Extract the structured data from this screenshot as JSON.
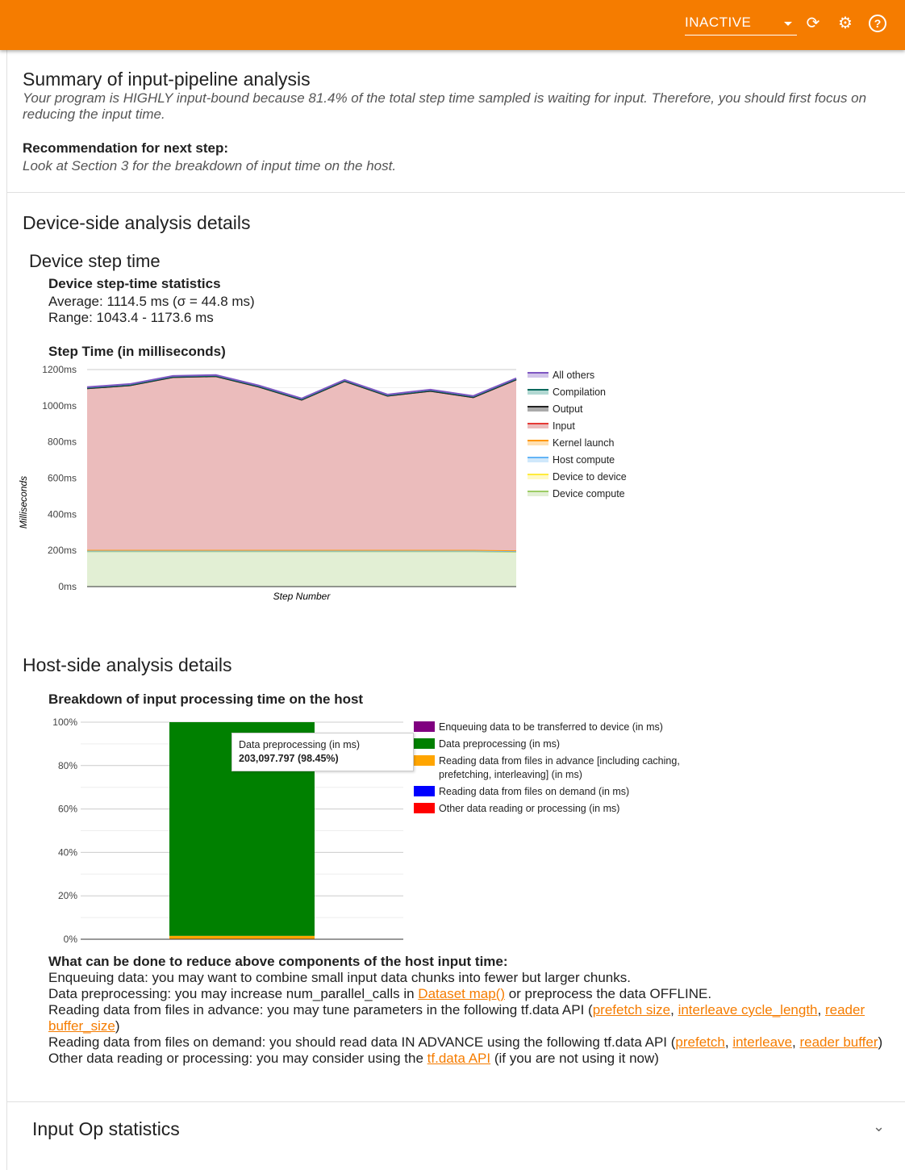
{
  "topbar": {
    "selected_run": "INACTIVE",
    "icons": [
      "refresh-icon",
      "settings-gear-icon",
      "help-icon"
    ],
    "color": "#f57c00"
  },
  "summary": {
    "title": "Summary of input-pipeline analysis",
    "text": "Your program is HIGHLY input-bound because 81.4% of the total step time sampled is waiting for input. Therefore, you should first focus on reducing the input time.",
    "rec_label": "Recommendation for next step:",
    "rec_text": "Look at Section 3 for the breakdown of input time on the host."
  },
  "device": {
    "title": "Device-side analysis details",
    "subtitle": "Device step time",
    "stats_title": "Device step-time statistics",
    "average": "Average: 1114.5 ms (σ = 44.8 ms)",
    "range": "Range: 1043.4 - 1173.6 ms",
    "chart_title": "Step Time (in milliseconds)"
  },
  "host": {
    "title": "Host-side analysis details",
    "chart_title": "Breakdown of input processing time on the host",
    "tooltip": {
      "label": "Data preprocessing (in ms)",
      "value": "203,097.797 (98.45%)"
    },
    "advice_title": "What can be done to reduce above components of the host input time:",
    "advice": {
      "l1": "Enqueuing data: you may want to combine small input data chunks into fewer but larger chunks.",
      "l2a": "Data preprocessing: you may increase num_parallel_calls in ",
      "l2link": "Dataset map()",
      "l2b": " or preprocess the data OFFLINE.",
      "l3a": "Reading data from files in advance: you may tune parameters in the following tf.data API (",
      "l3link1": "prefetch size",
      "l3link2": "interleave cycle_length",
      "l3link3": "reader buffer_size",
      "l4a": "Reading data from files on demand: you should read data IN ADVANCE using the following tf.data API (",
      "l4link1": "prefetch",
      "l4link2": "interleave",
      "l4link3": "reader buffer",
      "l5a": "Other data reading or processing: you may consider using the ",
      "l5link": "tf.data API",
      "l5b": " (if you are not using it now)"
    }
  },
  "input_op": {
    "title": "Input Op statistics"
  },
  "chart_data": [
    {
      "type": "area",
      "stacked": true,
      "title": "Step Time (in milliseconds)",
      "xlabel": "Step Number",
      "ylabel": "Milliseconds",
      "ylim": [
        0,
        1200
      ],
      "yticks": [
        "0ms",
        "200ms",
        "400ms",
        "600ms",
        "800ms",
        "1000ms",
        "1200ms"
      ],
      "grid": true,
      "legend": "right",
      "series": [
        {
          "name": "Device compute",
          "color": "#9ccc65",
          "fill": "#e2efd4",
          "values": [
            195,
            195,
            195,
            195,
            195,
            195,
            195,
            195,
            195,
            195,
            193
          ]
        },
        {
          "name": "Device to device",
          "color": "#ffeb3b",
          "fill": "#fff9c4",
          "values": [
            2,
            2,
            2,
            2,
            2,
            2,
            2,
            2,
            2,
            2,
            2
          ]
        },
        {
          "name": "Host compute",
          "color": "#64b5f6",
          "fill": "#d0e8fb",
          "values": [
            1,
            1,
            1,
            1,
            1,
            1,
            1,
            1,
            1,
            1,
            1
          ]
        },
        {
          "name": "Kernel launch",
          "color": "#ff9800",
          "fill": "#ffe0b2",
          "values": [
            5,
            5,
            5,
            5,
            5,
            5,
            5,
            5,
            5,
            5,
            4
          ]
        },
        {
          "name": "Input",
          "color": "#e53935",
          "fill": "#ebbcbc",
          "values": [
            893,
            910,
            955,
            960,
            902,
            830,
            933,
            852,
            879,
            844,
            945
          ]
        },
        {
          "name": "Output",
          "color": "#212121",
          "fill": "#aaaaaa",
          "values": [
            0,
            0,
            0,
            0,
            0,
            0,
            0,
            0,
            0,
            0,
            0
          ]
        },
        {
          "name": "Compilation",
          "color": "#00695c",
          "fill": "#b2d8d2",
          "values": [
            3,
            3,
            3,
            3,
            3,
            3,
            3,
            3,
            3,
            3,
            3
          ]
        },
        {
          "name": "All others",
          "color": "#7e57c2",
          "fill": "#d1c4e9",
          "values": [
            4,
            4,
            4,
            4,
            4,
            4,
            4,
            4,
            4,
            4,
            4
          ]
        }
      ]
    },
    {
      "type": "bar",
      "stacked": true,
      "percent": true,
      "ylim": [
        0,
        100
      ],
      "yticks": [
        "0%",
        "20%",
        "40%",
        "60%",
        "80%",
        "100%"
      ],
      "grid": true,
      "legend": "right",
      "series": [
        {
          "name": "Enqueuing data to be transferred to device (in ms)",
          "color": "#800080",
          "values": [
            0
          ]
        },
        {
          "name": "Data preprocessing (in ms)",
          "color": "#008000",
          "values": [
            98.45
          ]
        },
        {
          "name": "Reading data from files in advance [including caching, prefetching, interleaving] (in ms)",
          "color": "#ffa500",
          "values": [
            1.55
          ]
        },
        {
          "name": "Reading data from files on demand (in ms)",
          "color": "#0000ff",
          "values": [
            0
          ]
        },
        {
          "name": "Other data reading or processing (in ms)",
          "color": "#ff0000",
          "values": [
            0
          ]
        }
      ]
    }
  ]
}
